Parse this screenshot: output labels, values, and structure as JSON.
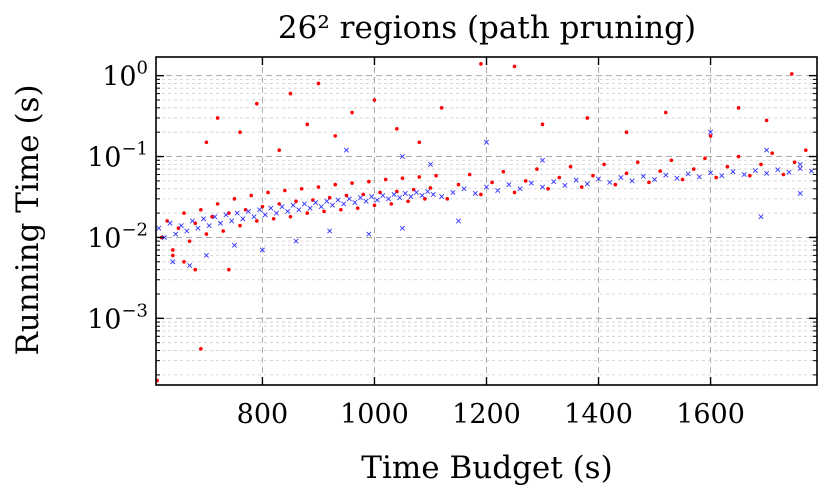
{
  "chart_data": {
    "type": "scatter",
    "title": "26² regions (path pruning)",
    "xlabel": "Time Budget (s)",
    "ylabel": "Running Time (s)",
    "xlim": [
      610,
      1790
    ],
    "ylim": [
      0.00015,
      1.7
    ],
    "yscale": "log",
    "grid": true,
    "legend": "none",
    "x_ticks": [
      800,
      1000,
      1200,
      1400,
      1600
    ],
    "x_tick_labels": [
      "800",
      "1000",
      "1200",
      "1400",
      "1600"
    ],
    "y_ticks": [
      0.001,
      0.01,
      0.1,
      1
    ],
    "y_tick_labels": [
      {
        "base": "10",
        "exp": "−3"
      },
      {
        "base": "10",
        "exp": "−2"
      },
      {
        "base": "10",
        "exp": "−1"
      },
      {
        "base": "10",
        "exp": "0"
      }
    ],
    "series": [
      {
        "marker": "dot",
        "color": "#ff0000",
        "points": [
          [
            620,
            0.01
          ],
          [
            630,
            0.016
          ],
          [
            640,
            0.007
          ],
          [
            650,
            0.013
          ],
          [
            660,
            0.02
          ],
          [
            670,
            0.009
          ],
          [
            680,
            0.015
          ],
          [
            690,
            0.022
          ],
          [
            700,
            0.011
          ],
          [
            710,
            0.018
          ],
          [
            720,
            0.026
          ],
          [
            730,
            0.012
          ],
          [
            740,
            0.02
          ],
          [
            750,
            0.03
          ],
          [
            760,
            0.014
          ],
          [
            770,
            0.022
          ],
          [
            780,
            0.033
          ],
          [
            790,
            0.016
          ],
          [
            800,
            0.024
          ],
          [
            810,
            0.036
          ],
          [
            820,
            0.017
          ],
          [
            830,
            0.026
          ],
          [
            840,
            0.038
          ],
          [
            850,
            0.018
          ],
          [
            860,
            0.028
          ],
          [
            870,
            0.04
          ],
          [
            880,
            0.02
          ],
          [
            890,
            0.029
          ],
          [
            900,
            0.042
          ],
          [
            910,
            0.021
          ],
          [
            920,
            0.031
          ],
          [
            930,
            0.045
          ],
          [
            940,
            0.022
          ],
          [
            950,
            0.033
          ],
          [
            960,
            0.047
          ],
          [
            970,
            0.023
          ],
          [
            980,
            0.034
          ],
          [
            990,
            0.049
          ],
          [
            1000,
            0.025
          ],
          [
            1010,
            0.036
          ],
          [
            1020,
            0.052
          ],
          [
            1030,
            0.026
          ],
          [
            1040,
            0.037
          ],
          [
            1050,
            0.054
          ],
          [
            1060,
            0.028
          ],
          [
            1070,
            0.039
          ],
          [
            1080,
            0.056
          ],
          [
            1090,
            0.03
          ],
          [
            1100,
            0.041
          ],
          [
            1110,
            0.058
          ],
          [
            1130,
            0.03
          ],
          [
            1150,
            0.045
          ],
          [
            1170,
            0.06
          ],
          [
            1190,
            0.034
          ],
          [
            1210,
            0.048
          ],
          [
            1230,
            0.065
          ],
          [
            1250,
            0.036
          ],
          [
            1270,
            0.05
          ],
          [
            1290,
            0.07
          ],
          [
            1310,
            0.04
          ],
          [
            1330,
            0.055
          ],
          [
            1350,
            0.075
          ],
          [
            1370,
            0.042
          ],
          [
            1390,
            0.058
          ],
          [
            1410,
            0.08
          ],
          [
            1430,
            0.045
          ],
          [
            1450,
            0.062
          ],
          [
            1470,
            0.085
          ],
          [
            1490,
            0.048
          ],
          [
            1510,
            0.066
          ],
          [
            1530,
            0.09
          ],
          [
            1550,
            0.052
          ],
          [
            1570,
            0.07
          ],
          [
            1590,
            0.095
          ],
          [
            1610,
            0.055
          ],
          [
            1630,
            0.075
          ],
          [
            1650,
            0.1
          ],
          [
            1670,
            0.058
          ],
          [
            1690,
            0.08
          ],
          [
            1710,
            0.11
          ],
          [
            1730,
            0.06
          ],
          [
            1750,
            0.085
          ],
          [
            1770,
            0.12
          ],
          [
            700,
            0.15
          ],
          [
            720,
            0.3
          ],
          [
            760,
            0.2
          ],
          [
            790,
            0.45
          ],
          [
            830,
            0.12
          ],
          [
            850,
            0.6
          ],
          [
            880,
            0.25
          ],
          [
            900,
            0.8
          ],
          [
            930,
            0.18
          ],
          [
            960,
            0.35
          ],
          [
            1000,
            0.5
          ],
          [
            1040,
            0.22
          ],
          [
            1080,
            0.15
          ],
          [
            1120,
            0.4
          ],
          [
            1190,
            1.4
          ],
          [
            1250,
            1.3
          ],
          [
            1300,
            0.25
          ],
          [
            1380,
            0.3
          ],
          [
            1450,
            0.2
          ],
          [
            1520,
            0.35
          ],
          [
            1600,
            0.18
          ],
          [
            1650,
            0.4
          ],
          [
            1700,
            0.28
          ],
          [
            1745,
            1.05
          ],
          [
            640,
            0.006
          ],
          [
            660,
            0.005
          ],
          [
            690,
            0.00042
          ],
          [
            612,
            0.00017
          ],
          [
            740,
            0.004
          ],
          [
            680,
            0.004
          ]
        ]
      },
      {
        "marker": "x",
        "color": "#3333ff",
        "points": [
          [
            615,
            0.013
          ],
          [
            625,
            0.01
          ],
          [
            635,
            0.015
          ],
          [
            645,
            0.011
          ],
          [
            655,
            0.014
          ],
          [
            665,
            0.012
          ],
          [
            675,
            0.016
          ],
          [
            685,
            0.013
          ],
          [
            695,
            0.017
          ],
          [
            705,
            0.014
          ],
          [
            715,
            0.018
          ],
          [
            725,
            0.015
          ],
          [
            735,
            0.019
          ],
          [
            745,
            0.016
          ],
          [
            755,
            0.02
          ],
          [
            765,
            0.017
          ],
          [
            775,
            0.021
          ],
          [
            785,
            0.018
          ],
          [
            795,
            0.022
          ],
          [
            805,
            0.019
          ],
          [
            815,
            0.023
          ],
          [
            825,
            0.02
          ],
          [
            835,
            0.024
          ],
          [
            845,
            0.021
          ],
          [
            855,
            0.025
          ],
          [
            865,
            0.022
          ],
          [
            875,
            0.026
          ],
          [
            885,
            0.023
          ],
          [
            895,
            0.027
          ],
          [
            905,
            0.024
          ],
          [
            915,
            0.028
          ],
          [
            925,
            0.025
          ],
          [
            935,
            0.029
          ],
          [
            945,
            0.026
          ],
          [
            955,
            0.03
          ],
          [
            965,
            0.027
          ],
          [
            975,
            0.031
          ],
          [
            985,
            0.028
          ],
          [
            995,
            0.032
          ],
          [
            1005,
            0.029
          ],
          [
            1015,
            0.033
          ],
          [
            1025,
            0.03
          ],
          [
            1035,
            0.034
          ],
          [
            1045,
            0.031
          ],
          [
            1055,
            0.035
          ],
          [
            1065,
            0.032
          ],
          [
            1075,
            0.036
          ],
          [
            1085,
            0.033
          ],
          [
            1095,
            0.037
          ],
          [
            1105,
            0.034
          ],
          [
            1120,
            0.032
          ],
          [
            1140,
            0.036
          ],
          [
            1160,
            0.04
          ],
          [
            1180,
            0.035
          ],
          [
            1200,
            0.042
          ],
          [
            1220,
            0.038
          ],
          [
            1240,
            0.045
          ],
          [
            1260,
            0.04
          ],
          [
            1280,
            0.047
          ],
          [
            1300,
            0.042
          ],
          [
            1320,
            0.049
          ],
          [
            1340,
            0.044
          ],
          [
            1360,
            0.051
          ],
          [
            1380,
            0.046
          ],
          [
            1400,
            0.053
          ],
          [
            1420,
            0.048
          ],
          [
            1440,
            0.055
          ],
          [
            1460,
            0.05
          ],
          [
            1480,
            0.057
          ],
          [
            1500,
            0.052
          ],
          [
            1520,
            0.059
          ],
          [
            1540,
            0.054
          ],
          [
            1560,
            0.061
          ],
          [
            1580,
            0.056
          ],
          [
            1600,
            0.063
          ],
          [
            1620,
            0.058
          ],
          [
            1640,
            0.065
          ],
          [
            1660,
            0.06
          ],
          [
            1680,
            0.067
          ],
          [
            1700,
            0.062
          ],
          [
            1720,
            0.069
          ],
          [
            1740,
            0.064
          ],
          [
            1760,
            0.071
          ],
          [
            1780,
            0.066
          ],
          [
            640,
            0.005
          ],
          [
            670,
            0.0045
          ],
          [
            700,
            0.006
          ],
          [
            750,
            0.008
          ],
          [
            800,
            0.007
          ],
          [
            860,
            0.009
          ],
          [
            920,
            0.012
          ],
          [
            990,
            0.011
          ],
          [
            1050,
            0.013
          ],
          [
            1150,
            0.016
          ],
          [
            1050,
            0.1
          ],
          [
            950,
            0.12
          ],
          [
            1200,
            0.15
          ],
          [
            1300,
            0.09
          ],
          [
            1600,
            0.2
          ],
          [
            1700,
            0.12
          ],
          [
            1760,
            0.035
          ],
          [
            1690,
            0.018
          ],
          [
            1760,
            0.08
          ],
          [
            1100,
            0.08
          ]
        ]
      }
    ]
  }
}
